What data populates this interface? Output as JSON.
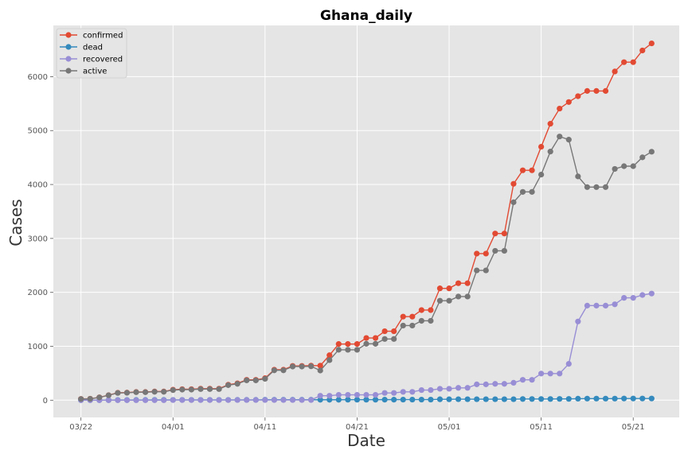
{
  "chart_data": {
    "type": "line",
    "title": "Ghana_daily",
    "xlabel": "Date",
    "ylabel": "Cases",
    "start_day": "03/22",
    "x_tick_labels": [
      "03/22",
      "04/01",
      "04/11",
      "04/21",
      "05/01",
      "05/11",
      "05/21"
    ],
    "x_tick_days": [
      0,
      10,
      20,
      30,
      40,
      50,
      60
    ],
    "xlim": [
      -3,
      65
    ],
    "y_ticks": [
      0,
      1000,
      2000,
      3000,
      4000,
      5000,
      6000
    ],
    "ylim": [
      -320,
      6950
    ],
    "grid": true,
    "legend_position": "top-left",
    "series": [
      {
        "name": "confirmed",
        "color": "#E24A33",
        "values": [
          24,
          27,
          53,
          93,
          137,
          141,
          152,
          152,
          161,
          161,
          195,
          204,
          204,
          214,
          214,
          214,
          287,
          313,
          378,
          378,
          408,
          566,
          566,
          636,
          636,
          641,
          641,
          834,
          1042,
          1042,
          1042,
          1154,
          1154,
          1279,
          1279,
          1550,
          1550,
          1671,
          1671,
          2074,
          2074,
          2169,
          2169,
          2719,
          2719,
          3091,
          3091,
          4012,
          4263,
          4263,
          4700,
          5127,
          5408,
          5530,
          5638,
          5735,
          5735,
          5735,
          6096,
          6269,
          6269,
          6486,
          6617
        ]
      },
      {
        "name": "dead",
        "color": "#348ABD",
        "values": [
          2,
          2,
          2,
          2,
          3,
          3,
          4,
          4,
          5,
          5,
          5,
          5,
          5,
          5,
          5,
          5,
          5,
          6,
          6,
          6,
          8,
          8,
          8,
          8,
          8,
          8,
          8,
          8,
          8,
          9,
          9,
          9,
          9,
          10,
          10,
          11,
          11,
          11,
          11,
          17,
          17,
          18,
          18,
          18,
          18,
          18,
          18,
          18,
          22,
          22,
          22,
          22,
          24,
          24,
          28,
          29,
          29,
          29,
          29,
          31,
          31,
          31,
          31
        ]
      },
      {
        "name": "recovered",
        "color": "#988ED5",
        "values": [
          0,
          0,
          0,
          0,
          0,
          0,
          0,
          0,
          0,
          0,
          3,
          3,
          3,
          3,
          3,
          3,
          3,
          4,
          4,
          4,
          4,
          4,
          4,
          4,
          4,
          4,
          83,
          83,
          99,
          99,
          99,
          99,
          99,
          134,
          134,
          155,
          155,
          188,
          188,
          212,
          212,
          229,
          229,
          294,
          294,
          303,
          303,
          323,
          378,
          378,
          494,
          494,
          494,
          674,
          1460,
          1754,
          1754,
          1754,
          1778,
          1898,
          1898,
          1951,
          1978
        ]
      },
      {
        "name": "active",
        "color": "#777777",
        "values": [
          22,
          25,
          51,
          91,
          134,
          138,
          148,
          148,
          156,
          156,
          187,
          196,
          196,
          206,
          206,
          206,
          279,
          303,
          368,
          368,
          396,
          554,
          554,
          624,
          624,
          629,
          550,
          743,
          935,
          934,
          934,
          1046,
          1046,
          1135,
          1135,
          1384,
          1384,
          1472,
          1472,
          1845,
          1845,
          1922,
          1922,
          2407,
          2407,
          2770,
          2770,
          3671,
          3863,
          3863,
          4184,
          4611,
          4890,
          4832,
          4150,
          3952,
          3952,
          3952,
          4289,
          4340,
          4340,
          4504,
          4608
        ]
      }
    ]
  }
}
